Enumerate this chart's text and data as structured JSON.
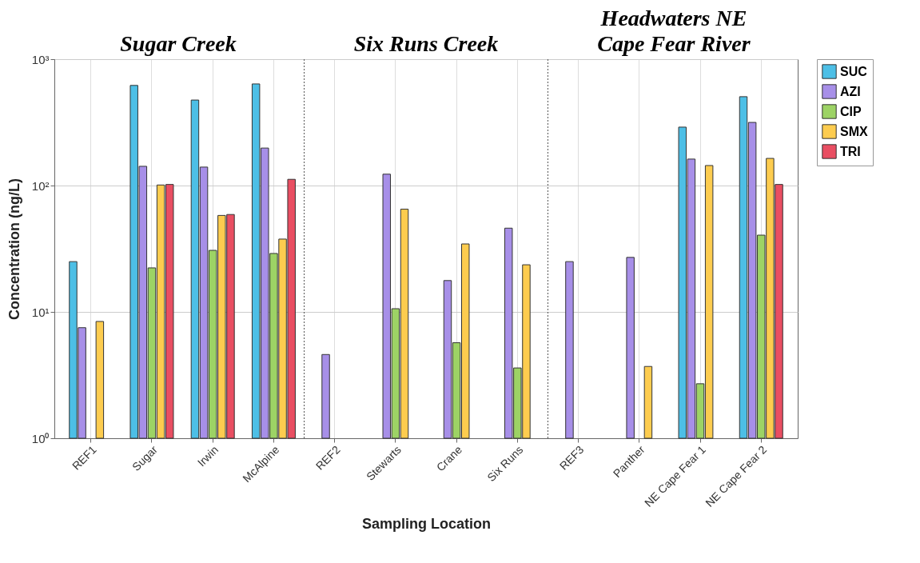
{
  "chart_data": {
    "type": "bar",
    "xlabel": "Sampling Location",
    "ylabel": "Concentration (ng/L)",
    "categories": [
      "REF1",
      "Sugar",
      "Irwin",
      "McAlpine",
      "REF2",
      "Stewarts",
      "Crane",
      "Six Runs",
      "REF3",
      "Panther",
      "NE Cape Fear 1",
      "NE Cape Fear 2"
    ],
    "series": [
      {
        "name": "SUC",
        "color": "#4dbfe6",
        "values": [
          25,
          620,
          475,
          637,
          null,
          null,
          null,
          null,
          null,
          null,
          290,
          505
        ]
      },
      {
        "name": "AZI",
        "color": "#a78fe8",
        "values": [
          7.5,
          142,
          140,
          198,
          4.6,
          123,
          17.7,
          46,
          25,
          27,
          162,
          316
        ]
      },
      {
        "name": "CIP",
        "color": "#9dd365",
        "values": [
          null,
          22.3,
          30.7,
          29,
          null,
          10.6,
          5.7,
          3.6,
          null,
          null,
          2.7,
          40.5
        ]
      },
      {
        "name": "SMX",
        "color": "#fdcc4f",
        "values": [
          8.4,
          101,
          58,
          37.7,
          null,
          65,
          34.5,
          23.6,
          null,
          3.7,
          144,
          164
        ]
      },
      {
        "name": "TRI",
        "color": "#e94e62",
        "values": [
          null,
          102,
          59,
          112,
          null,
          null,
          null,
          null,
          null,
          null,
          null,
          102
        ]
      }
    ],
    "log": true,
    "ylim": [
      1,
      1000
    ],
    "yticks": [
      {
        "value": 1,
        "label": "10⁰"
      },
      {
        "value": 10,
        "label": "10¹"
      },
      {
        "value": 100,
        "label": "10²"
      },
      {
        "value": 1000,
        "label": "10³"
      }
    ],
    "grid": true,
    "legend": "right",
    "annotations": [
      "Sugar Creek",
      "Six Runs Creek",
      "Headwaters NE\nCape Fear River"
    ]
  }
}
